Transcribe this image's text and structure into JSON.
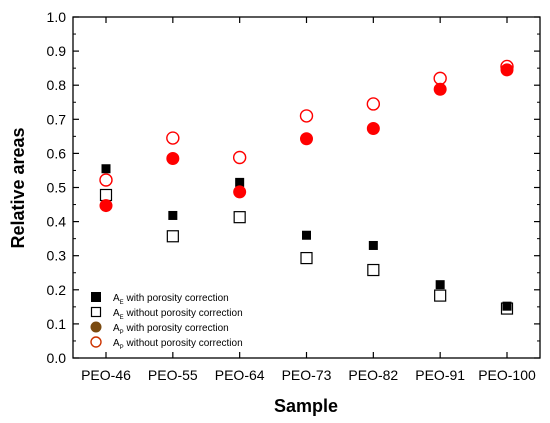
{
  "chart_data": {
    "type": "scatter",
    "title": "",
    "xlabel": "Sample",
    "ylabel": "Relative areas",
    "ylim": [
      0.0,
      1.0
    ],
    "ytick_step": 0.1,
    "yticks": [
      "0.0",
      "0.1",
      "0.2",
      "0.3",
      "0.4",
      "0.5",
      "0.6",
      "0.7",
      "0.8",
      "0.9",
      "1.0"
    ],
    "categories": [
      "PEO-46",
      "PEO-55",
      "PEO-64",
      "PEO-73",
      "PEO-82",
      "PEO-91",
      "PEO-100"
    ],
    "grid": false,
    "legend_position": "bottom-left",
    "series": [
      {
        "name": "A",
        "subscript": "E",
        "suffix": " with porosity correction",
        "marker": "filled-square",
        "color": "#000000",
        "values": [
          0.555,
          0.418,
          0.515,
          0.36,
          0.33,
          0.215,
          0.152
        ]
      },
      {
        "name": "A",
        "subscript": "E",
        "suffix": " without porosity correction",
        "marker": "open-square",
        "color": "#000000",
        "values": [
          0.478,
          0.357,
          0.413,
          0.293,
          0.258,
          0.183,
          0.145
        ]
      },
      {
        "name": "A",
        "subscript": "P",
        "suffix": " with porosity correction",
        "marker": "filled-circle",
        "color": "#ff0000",
        "legend_color": "#7a4a10",
        "values": [
          0.447,
          0.585,
          0.487,
          0.643,
          0.673,
          0.788,
          0.845
        ]
      },
      {
        "name": "A",
        "subscript": "P",
        "suffix": " without porosity correction",
        "marker": "open-circle",
        "color": "#ff0000",
        "legend_color": "#cc3300",
        "values": [
          0.522,
          0.645,
          0.588,
          0.71,
          0.745,
          0.82,
          0.855
        ]
      }
    ]
  }
}
